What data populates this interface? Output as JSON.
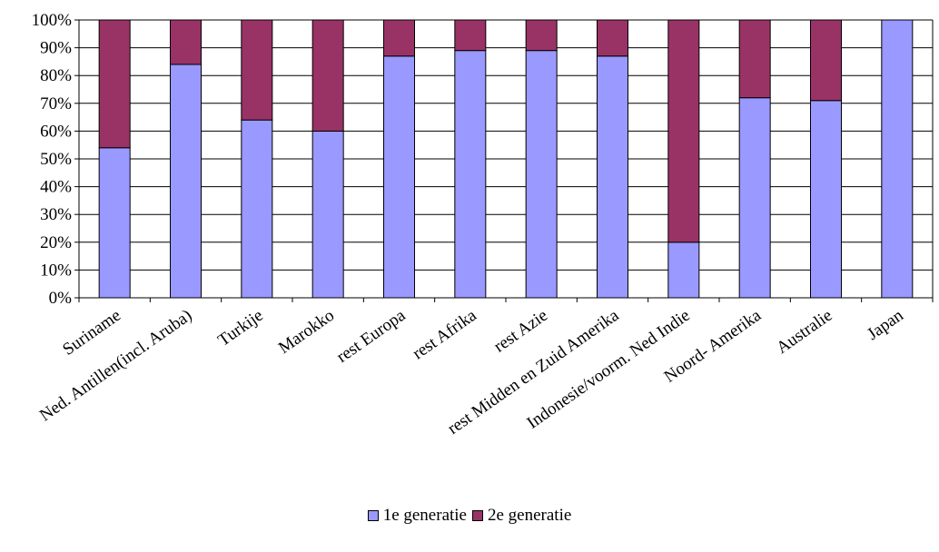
{
  "chart_data": {
    "type": "bar",
    "stacked": true,
    "title": "",
    "xlabel": "",
    "ylabel": "",
    "ylim": [
      0,
      100
    ],
    "ytick_suffix": "%",
    "yticks": [
      0,
      10,
      20,
      30,
      40,
      50,
      60,
      70,
      80,
      90,
      100
    ],
    "grid": true,
    "legend_position": "bottom",
    "categories": [
      "Suriname",
      "Ned. Antillen(incl. Aruba)",
      "Turkije",
      "Marokko",
      "rest Europa",
      "rest Afrika",
      "rest Azie",
      "rest Midden en Zuid Amerika",
      "Indonesie/voorm. Ned Indie",
      "Noord- Amerika",
      "Australie",
      "Japan"
    ],
    "series": [
      {
        "name": "1e generatie",
        "color": "#9999ff",
        "values": [
          54,
          84,
          64,
          60,
          87,
          89,
          89,
          87,
          20,
          72,
          71,
          100
        ]
      },
      {
        "name": "2e generatie",
        "color": "#993366",
        "values": [
          46,
          16,
          36,
          40,
          13,
          11,
          11,
          13,
          80,
          28,
          29,
          0
        ]
      }
    ]
  }
}
